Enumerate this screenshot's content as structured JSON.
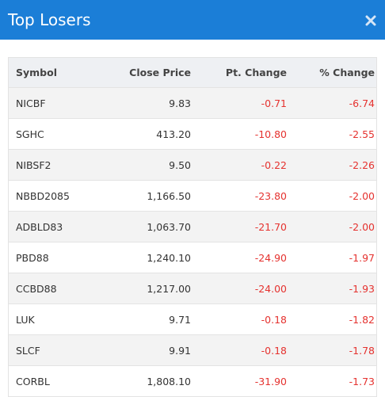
{
  "header": {
    "title": "Top Losers"
  },
  "table": {
    "columns": [
      "Symbol",
      "Close Price",
      "Pt. Change",
      "% Change"
    ],
    "rows": [
      [
        "NICBF",
        "9.83",
        "-0.71",
        "-6.74"
      ],
      [
        "SGHC",
        "413.20",
        "-10.80",
        "-2.55"
      ],
      [
        "NIBSF2",
        "9.50",
        "-0.22",
        "-2.26"
      ],
      [
        "NBBD2085",
        "1,166.50",
        "-23.80",
        "-2.00"
      ],
      [
        "ADBLD83",
        "1,063.70",
        "-21.70",
        "-2.00"
      ],
      [
        "PBD88",
        "1,240.10",
        "-24.90",
        "-1.97"
      ],
      [
        "CCBD88",
        "1,217.00",
        "-24.00",
        "-1.93"
      ],
      [
        "LUK",
        "9.71",
        "-0.18",
        "-1.82"
      ],
      [
        "SLCF",
        "9.91",
        "-0.18",
        "-1.78"
      ],
      [
        "CORBL",
        "1,808.10",
        "-31.90",
        "-1.73"
      ]
    ]
  }
}
